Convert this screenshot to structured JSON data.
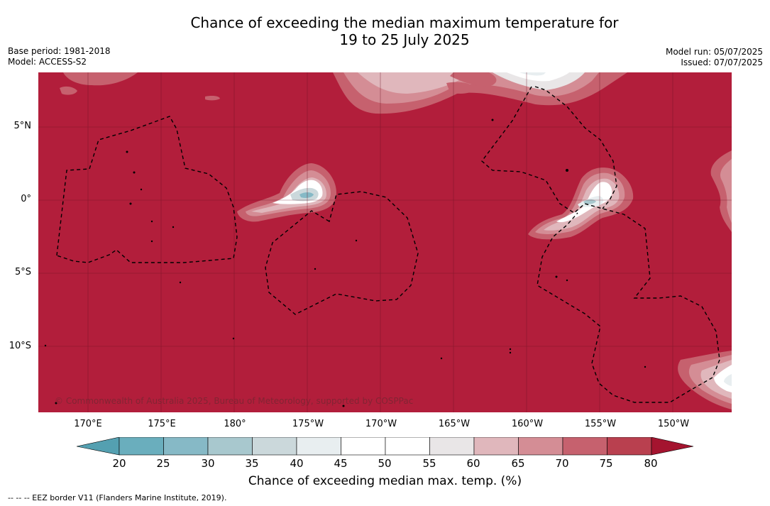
{
  "title": {
    "line1": "Chance of exceeding the median maximum temperature for",
    "line2": "19 to 25 July 2025"
  },
  "meta": {
    "base_period": "Base period: 1981-2018",
    "model": "Model: ACCESS-S2",
    "model_run": "Model run: 05/07/2025",
    "issued": "Issued: 07/07/2025"
  },
  "map": {
    "latitude_labels": [
      "5°N",
      "0°",
      "5°S",
      "10°S"
    ],
    "longitude_labels": [
      "170°E",
      "175°E",
      "180°",
      "175°W",
      "170°W",
      "165°W",
      "160°W",
      "155°W",
      "150°W"
    ],
    "credit": "© Commonwealth of Australia 2025, Bureau of Meteorology, supported by COSPPac",
    "background_color": "#b21e3b"
  },
  "legend": {
    "ticks": [
      "20",
      "25",
      "30",
      "35",
      "40",
      "45",
      "50",
      "55",
      "60",
      "65",
      "70",
      "75",
      "80"
    ],
    "colors": [
      "#6aaebd",
      "#86b9c6",
      "#a8c8ce",
      "#cbd8db",
      "#e8eef0",
      "#ffffff",
      "#ffffff",
      "#e9e6e7",
      "#e0b7bc",
      "#d48d95",
      "#c6616e",
      "#b9404f"
    ],
    "under_color": "#54a0b1",
    "over_color": "#a4142f",
    "label": "Chance of exceeding median max. temp. (%)"
  },
  "footer": "--  --  -- EEZ border V11 (Flanders Marine Institute, 2019)."
}
